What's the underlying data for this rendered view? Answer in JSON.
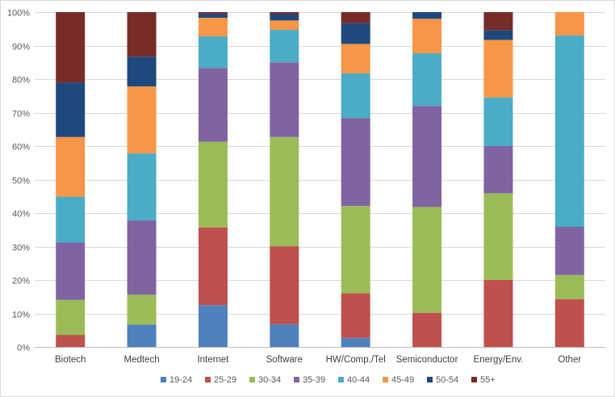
{
  "chart_data": {
    "type": "bar",
    "stacked": true,
    "percent": true,
    "title": "",
    "xlabel": "",
    "ylabel": "",
    "ylim": [
      0,
      100
    ],
    "yticks": [
      "0%",
      "10%",
      "20%",
      "30%",
      "40%",
      "50%",
      "60%",
      "70%",
      "80%",
      "90%",
      "100%"
    ],
    "grid": true,
    "legend_position": "bottom",
    "categories": [
      "Biotech",
      "Medtech",
      "Internet",
      "Software",
      "HW/Comp./Tel",
      "Semiconductor",
      "Energy/Env.",
      "Other"
    ],
    "series": [
      {
        "name": "19-24",
        "color": "#4F81BD",
        "values": [
          0,
          6.7,
          12.5,
          6.8,
          2.7,
          0,
          0,
          0
        ]
      },
      {
        "name": "25-29",
        "color": "#C0504D",
        "values": [
          3.6,
          0,
          23.2,
          23.3,
          13.3,
          10.2,
          20.0,
          14.3
        ]
      },
      {
        "name": "30-34",
        "color": "#9BBB59",
        "values": [
          10.5,
          8.9,
          25.6,
          32.6,
          26.1,
          31.6,
          25.9,
          7.2
        ]
      },
      {
        "name": "35-39",
        "color": "#8064A2",
        "values": [
          17.1,
          22.2,
          22.0,
          22.3,
          26.3,
          30.2,
          14.1,
          14.4
        ]
      },
      {
        "name": "40-44",
        "color": "#4BACC6",
        "values": [
          13.7,
          20.0,
          9.5,
          9.7,
          13.3,
          15.7,
          14.5,
          57.1
        ]
      },
      {
        "name": "45-49",
        "color": "#F79646",
        "values": [
          17.8,
          20.0,
          5.5,
          2.8,
          8.8,
          10.3,
          17.2,
          7.0
        ]
      },
      {
        "name": "50-54",
        "color": "#1F497D",
        "values": [
          16.2,
          8.9,
          1.2,
          1.9,
          6.2,
          2.0,
          2.9,
          0
        ]
      },
      {
        "name": "55+",
        "color": "#772C2A",
        "values": [
          21.1,
          13.3,
          0.5,
          0.6,
          3.3,
          0,
          5.4,
          0
        ]
      }
    ]
  }
}
